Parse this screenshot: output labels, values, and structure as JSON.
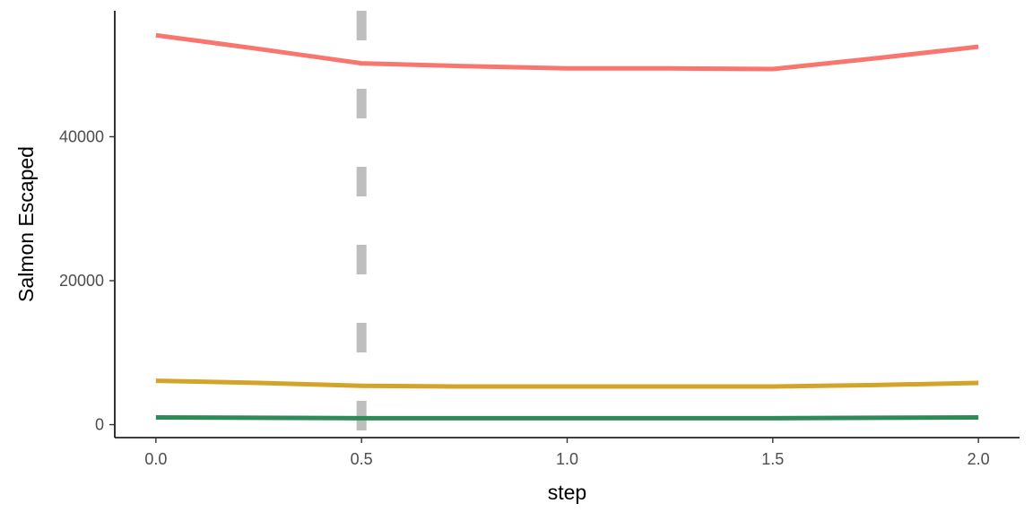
{
  "chart_data": {
    "type": "line",
    "title": "",
    "xlabel": "step",
    "ylabel": "Salmon Escaped",
    "xlim": [
      -0.1,
      2.1
    ],
    "ylim": [
      -1800,
      57500
    ],
    "x_ticks": [
      0.0,
      0.5,
      1.0,
      1.5,
      2.0
    ],
    "x_tick_labels": [
      "0.0",
      "0.5",
      "1.0",
      "1.5",
      "2.0"
    ],
    "y_ticks": [
      0,
      20000,
      40000
    ],
    "y_tick_labels": [
      "0",
      "20000",
      "40000"
    ],
    "grid": false,
    "legend": "none",
    "x": [
      0.0,
      0.25,
      0.5,
      0.75,
      1.0,
      1.25,
      1.5,
      1.75,
      2.0
    ],
    "series": [
      {
        "color": "#F8766D",
        "values": [
          54100,
          52200,
          50200,
          49800,
          49500,
          49500,
          49400,
          50900,
          52500
        ]
      },
      {
        "color": "#D4A32A",
        "values": [
          6100,
          5800,
          5400,
          5300,
          5300,
          5300,
          5300,
          5500,
          5800
        ]
      },
      {
        "color": "#2E8B57",
        "values": [
          1000,
          950,
          900,
          900,
          900,
          900,
          900,
          950,
          1000
        ]
      }
    ],
    "reference_line": {
      "axis": "x",
      "value": 0.5,
      "color": "#BEBEBE",
      "style": "dashed"
    }
  }
}
